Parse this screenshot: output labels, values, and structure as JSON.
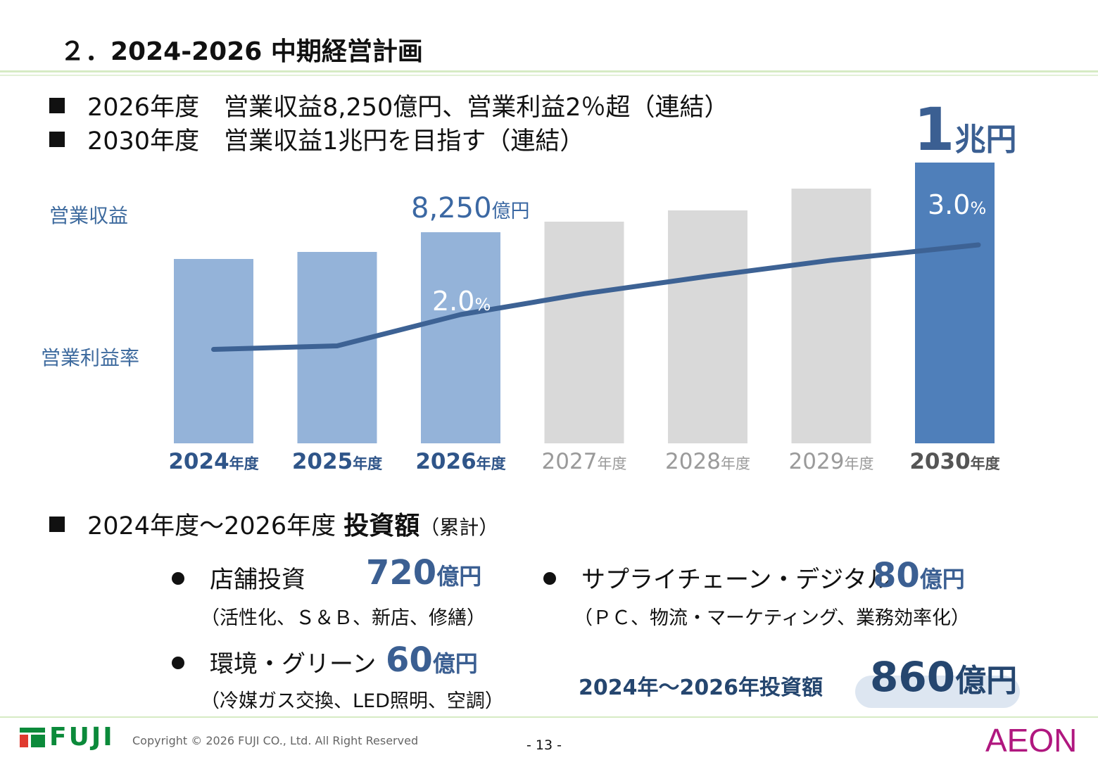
{
  "title": "２．2024-2026 中期経営計画",
  "goals": [
    {
      "text": "2026年度　営業収益8,250億円、営業利益2％超（連結）"
    },
    {
      "text": "2030年度　営業収益1兆円を目指す（連結）"
    }
  ],
  "chart_data": {
    "type": "bar",
    "categories": [
      "2024年度",
      "2025年度",
      "2026年度",
      "2027年度",
      "2028年度",
      "2029年度",
      "2030年度"
    ],
    "category_years": [
      "2024",
      "2025",
      "2026",
      "2027",
      "2028",
      "2029",
      "2030"
    ],
    "category_suffix": "年度",
    "series": [
      {
        "name": "営業収益",
        "values": [
          7400,
          7700,
          8250,
          8700,
          9100,
          9550,
          10000
        ],
        "unit": "億円"
      },
      {
        "name": "営業利益率",
        "values": [
          1.5,
          1.55,
          2.0,
          2.3,
          2.55,
          2.78,
          3.0
        ],
        "unit": "%"
      }
    ],
    "bar_colors": [
      "#94b3d9",
      "#94b3d9",
      "#94b3d9",
      "#d9d9d9",
      "#d9d9d9",
      "#d9d9d9",
      "#4f7fba"
    ],
    "label_colors": [
      "#2f5589",
      "#2f5589",
      "#2f5589",
      "#9a9a9a",
      "#9a9a9a",
      "#9a9a9a",
      "#555555"
    ],
    "line_color": "#3d6294",
    "series_label_color": "#3d6a9e",
    "annotations": {
      "revenue_2026": {
        "value": "8,250",
        "unit": "億円"
      },
      "margin_2026": {
        "value": "2.0",
        "unit": "%"
      },
      "margin_2030": {
        "value": "3.0",
        "unit": "%"
      }
    },
    "ylim_revenue": [
      0,
      10000
    ],
    "ylim_margin": [
      0,
      3.3
    ]
  },
  "trillion": {
    "num": "1",
    "unit": "兆円"
  },
  "investment": {
    "heading_prefix": "2024年度～2026年度 ",
    "heading_bold": "投資額",
    "heading_suffix": "（累計）",
    "items": [
      {
        "label": "店舗投資",
        "amount": "720",
        "unit": "億円",
        "detail": "（活性化、Ｓ＆Ｂ、新店、修繕）"
      },
      {
        "label": "サプライチェーン・デジタル",
        "amount": "80",
        "unit": "億円",
        "detail": "（ＰＣ、物流・マーケティング、業務効率化）"
      },
      {
        "label": "環境・グリーン",
        "amount": "60",
        "unit": "億円",
        "detail": "（冷媒ガス交換、LED照明、空調）"
      }
    ],
    "total_label": "2024年～2026年投資額",
    "total_amount": "860",
    "total_unit": "億円"
  },
  "footer": {
    "company_logo": "FUJI",
    "copyright": "Copyright © 2026 FUJI CO., Ltd. All Right Reserved",
    "page": "- 13 -",
    "partner_logo": "AEON"
  }
}
